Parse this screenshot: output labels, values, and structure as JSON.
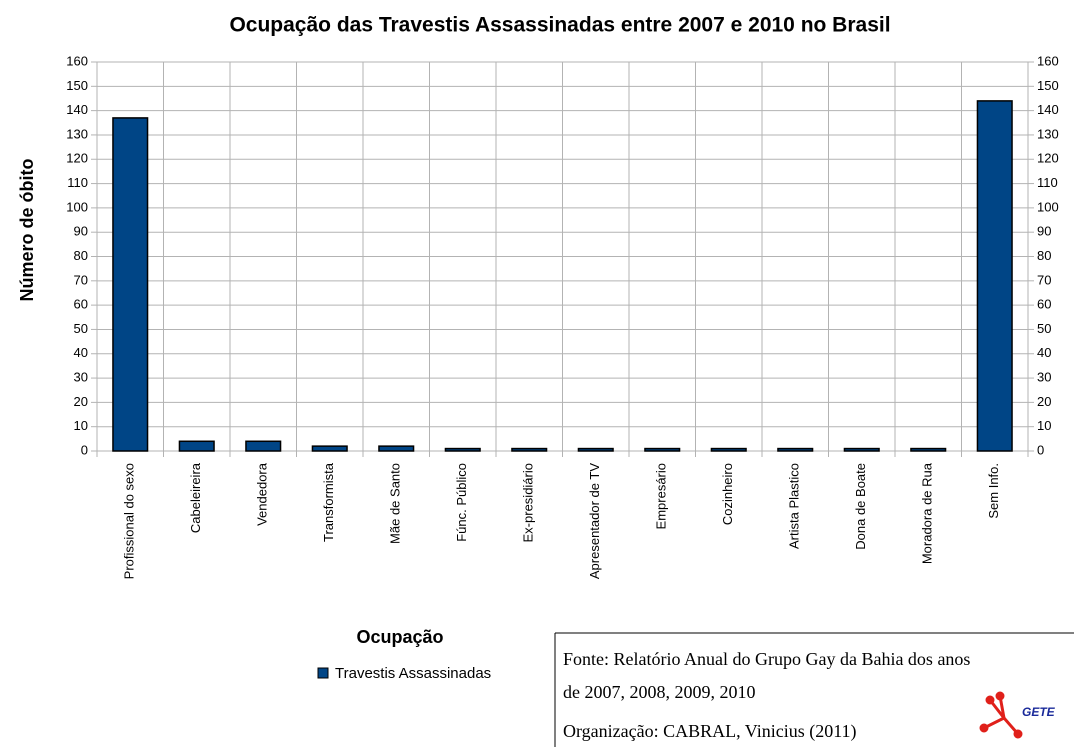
{
  "chart_data": {
    "type": "bar",
    "title": "Ocupação das Travestis Assassinadas entre 2007 e 2010 no Brasil",
    "x_label": "Ocupação",
    "y_label": "Número de óbito",
    "categories": [
      "Profissional do sexo",
      "Cabeleireira",
      "Vendedora",
      "Transformista",
      "Mãe de Santo",
      "Fúnc. Público",
      "Ex-presidiário",
      "Apresentador de TV",
      "Empresário",
      "Cozinheiro",
      "Artista Plastico",
      "Dona de Boate",
      "Moradora de Rua",
      "Sem Info."
    ],
    "series": [
      {
        "name": "Travestis Assassinadas",
        "color": "#004586",
        "values": [
          137,
          4,
          4,
          2,
          2,
          1,
          1,
          1,
          1,
          1,
          1,
          1,
          1,
          144
        ]
      }
    ],
    "ylim": [
      0,
      160
    ],
    "yticks": [
      0,
      10,
      20,
      30,
      40,
      50,
      60,
      70,
      80,
      90,
      100,
      110,
      120,
      130,
      140,
      150,
      160
    ],
    "grid": true,
    "legend": "bottom"
  },
  "source": {
    "lines": [
      "Fonte: Relatório Anual do Grupo Gay da Bahia dos anos",
      "de 2007, 2008, 2009, 2010",
      "Organização: CABRAL, Vinicius (2011)"
    ],
    "logo": "GETE"
  }
}
